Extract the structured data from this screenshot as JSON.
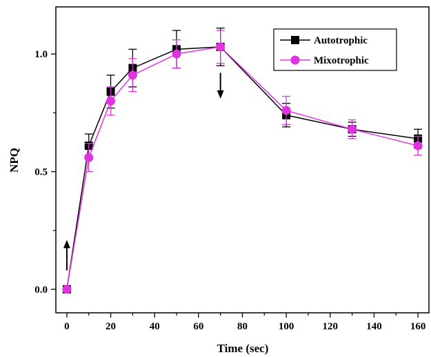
{
  "chart_data": {
    "type": "line",
    "title": "",
    "xlabel": "Time (sec)",
    "ylabel": "NPQ",
    "xlim": [
      -5,
      165
    ],
    "ylim": [
      -0.1,
      1.2
    ],
    "x_ticks": [
      0,
      20,
      40,
      60,
      80,
      100,
      120,
      140,
      160
    ],
    "x_tick_labels": [
      "0",
      "20",
      "40",
      "60",
      "80",
      "100",
      "120",
      "140",
      "160"
    ],
    "y_ticks": [
      0.0,
      0.5,
      1.0
    ],
    "y_tick_labels": [
      "0.0",
      "0.5",
      "1.0"
    ],
    "grid": false,
    "legend_position": "top-right",
    "x": [
      0,
      10,
      20,
      30,
      50,
      70,
      100,
      130,
      160
    ],
    "series": [
      {
        "name": "Autotrophic",
        "marker": "square",
        "color": "#000000",
        "values": [
          0.0,
          0.61,
          0.84,
          0.94,
          1.02,
          1.03,
          0.74,
          0.68,
          0.64
        ],
        "errors": [
          0.01,
          0.05,
          0.07,
          0.08,
          0.08,
          0.08,
          0.05,
          0.03,
          0.04
        ]
      },
      {
        "name": "Mixotrophic",
        "marker": "circle",
        "color": "#e033e0",
        "values": [
          0.0,
          0.56,
          0.8,
          0.91,
          1.0,
          1.03,
          0.76,
          0.68,
          0.61
        ],
        "errors": [
          0.01,
          0.06,
          0.06,
          0.07,
          0.06,
          0.07,
          0.06,
          0.04,
          0.04
        ]
      }
    ],
    "annotations": [
      {
        "type": "arrow-up",
        "x": 0,
        "y_from": 0.08,
        "y_to": 0.21
      },
      {
        "type": "arrow-down",
        "x": 70,
        "y_from": 0.92,
        "y_to": 0.81
      }
    ]
  }
}
